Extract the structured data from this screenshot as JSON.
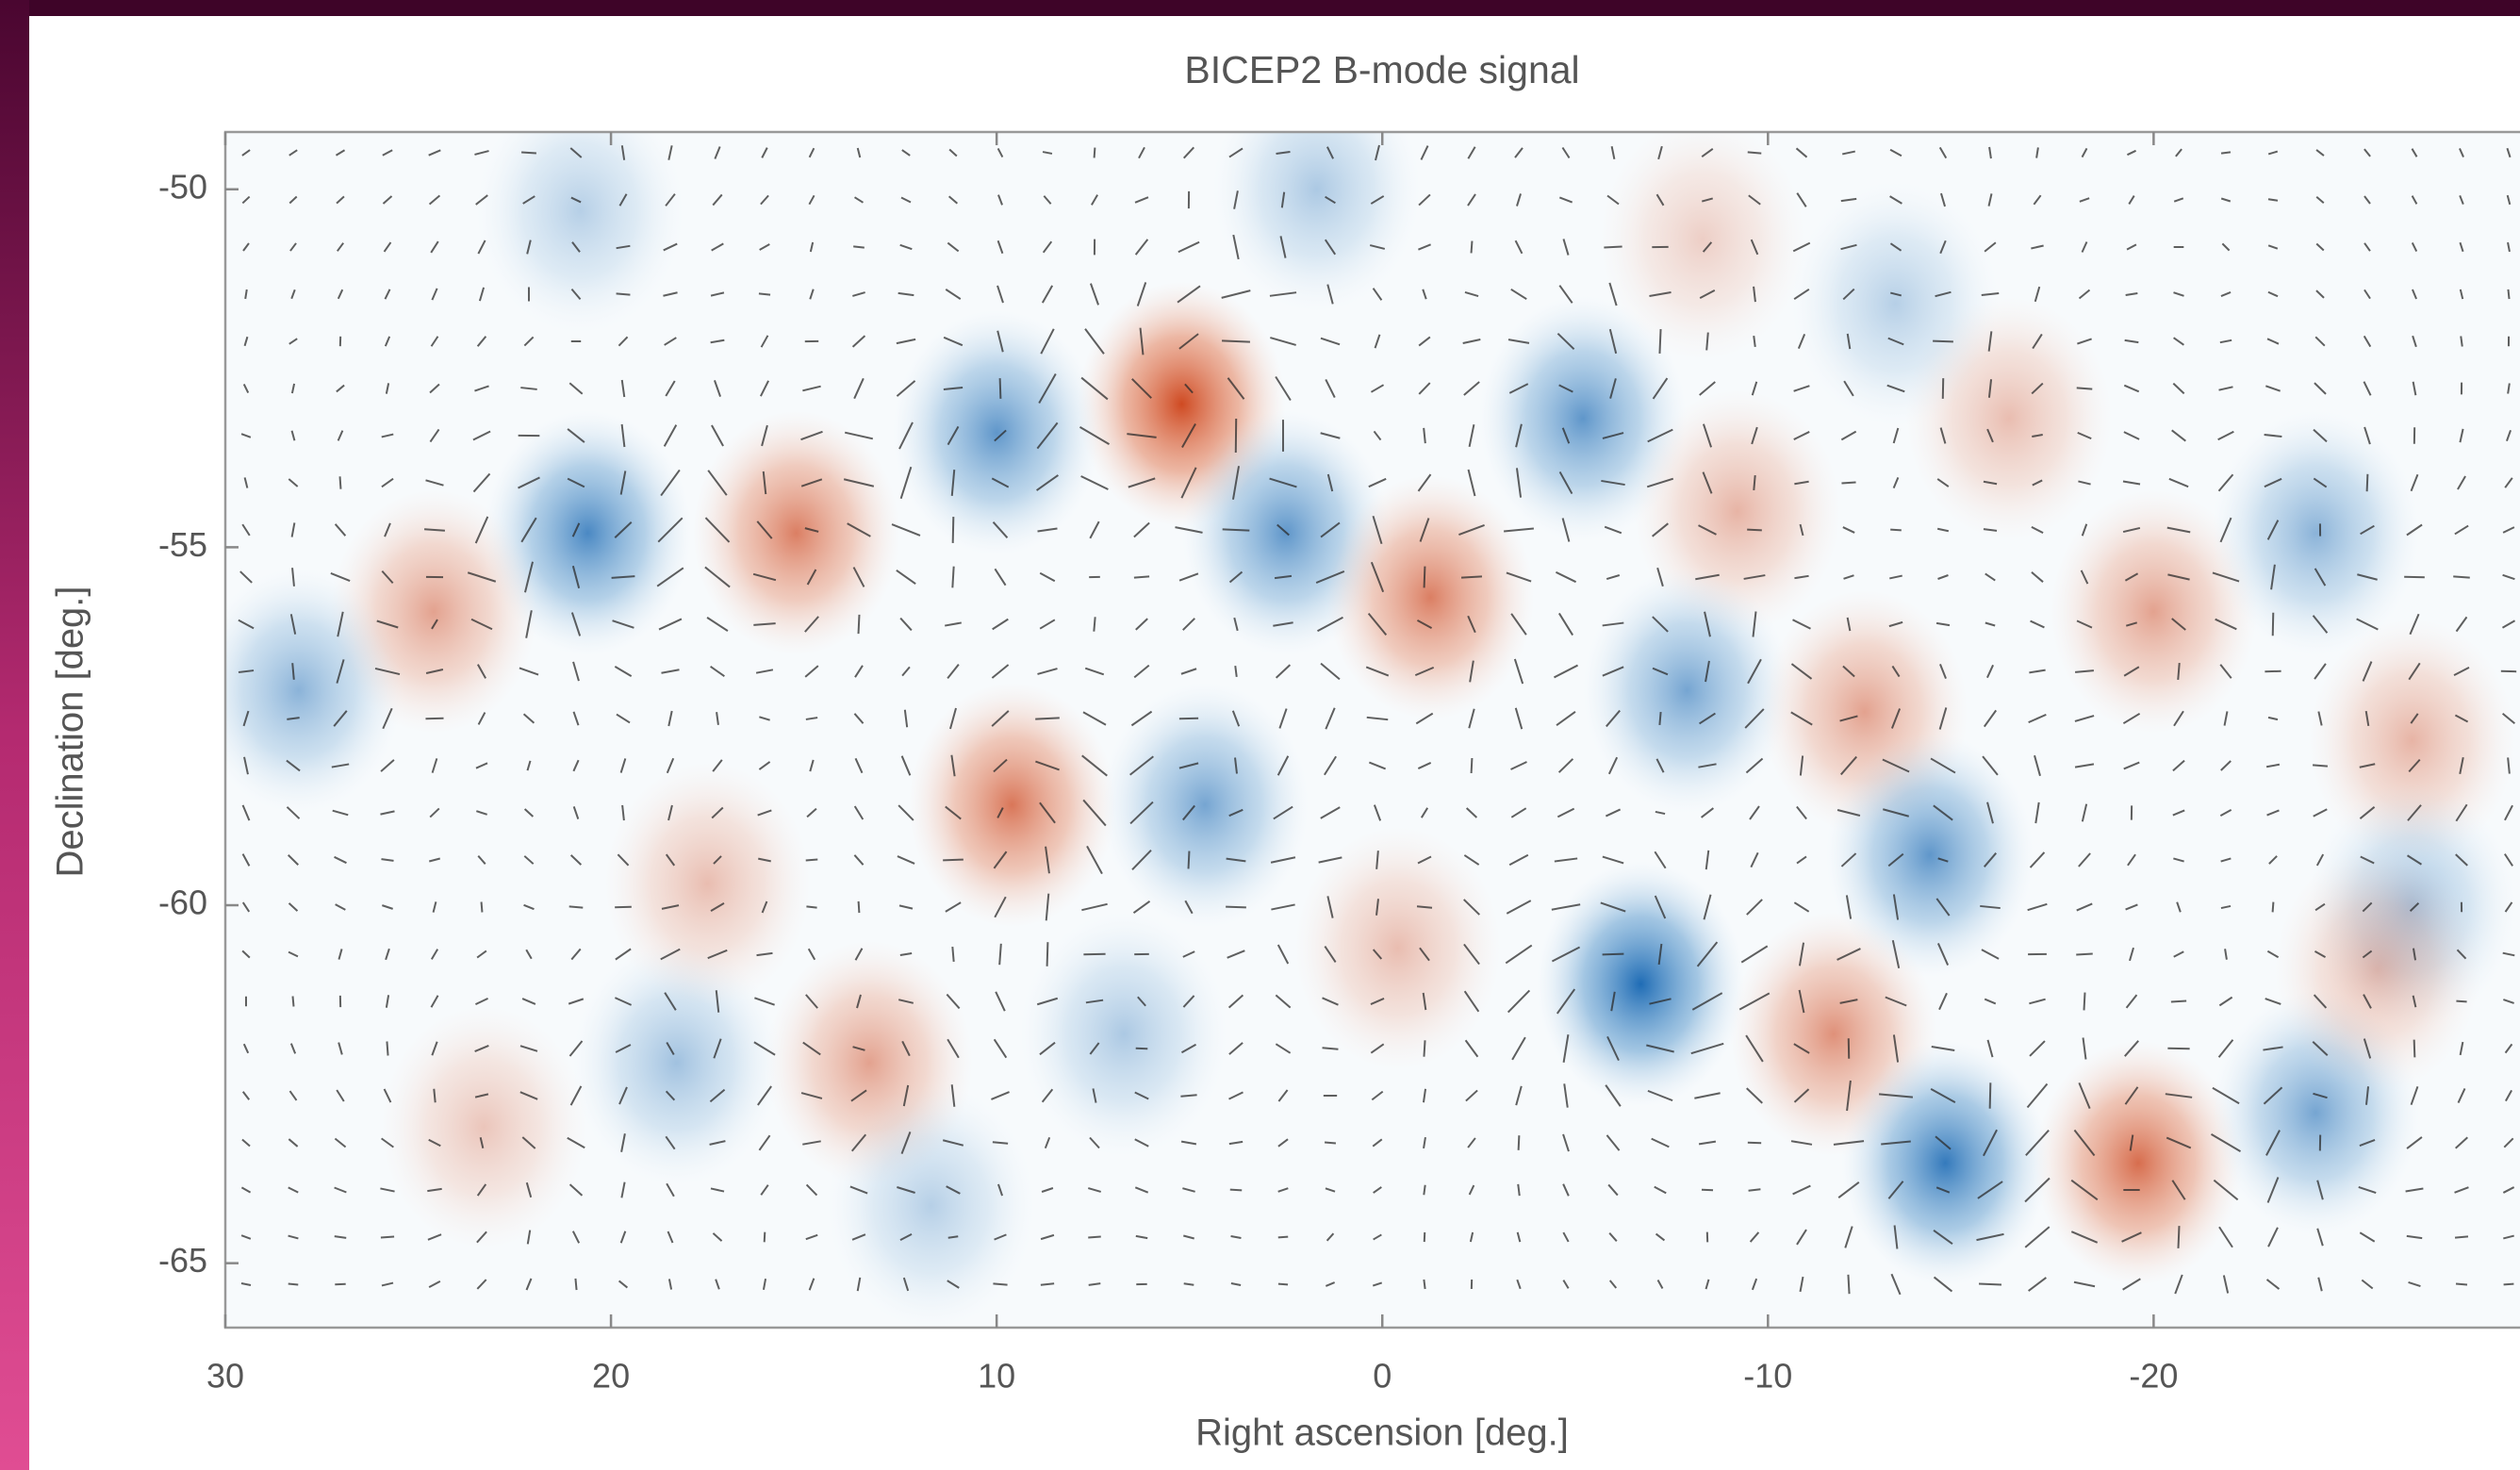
{
  "chart_data": {
    "type": "heatmap",
    "title": "BICEP2 B-mode signal",
    "x_label": "Right ascension [deg.]",
    "y_label": "Declination [deg.]",
    "xlim": [
      30,
      -29.5
    ],
    "ylim": [
      -65.9,
      -49.2
    ],
    "xticks": [
      30,
      20,
      10,
      0,
      -10,
      -20
    ],
    "yticks": [
      -50,
      -55,
      -60,
      -65
    ],
    "colors": {
      "negative": "#1f6cb5",
      "positive": "#cf4a22"
    },
    "x": [
      5.2,
      20.6,
      15.2,
      24.6,
      28.1,
      10.0,
      2.5,
      -1.25,
      -5.2,
      -9.2,
      -7.9,
      9.6,
      4.6,
      -12.5,
      -14.2,
      -6.7,
      -11.7,
      -14.6,
      -19.6,
      -24.2,
      -20,
      -24.2,
      13.3,
      18.3,
      17.5,
      -0.4,
      6.7,
      -16.25,
      -26.7,
      -26.7,
      -25.8,
      -8.3,
      20.8,
      -13.3,
      1.7,
      23.3,
      11.7
    ],
    "y": [
      -53.0,
      -54.8,
      -54.8,
      -55.9,
      -57.0,
      -53.4,
      -54.8,
      -55.7,
      -53.2,
      -54.5,
      -57.0,
      -58.6,
      -58.6,
      -57.3,
      -59.3,
      -61.1,
      -61.8,
      -63.6,
      -63.6,
      -62.9,
      -55.9,
      -54.8,
      -62.2,
      -62.2,
      -59.7,
      -60.6,
      -61.8,
      -53.2,
      -57.7,
      -60.0,
      -60.9,
      -50.7,
      -50.3,
      -51.6,
      -50.0,
      -63.1,
      -64.2
    ],
    "values": [
      1.0,
      -0.8,
      0.7,
      0.5,
      -0.5,
      -0.7,
      -0.7,
      0.7,
      -0.7,
      0.4,
      -0.6,
      0.75,
      -0.6,
      0.5,
      -0.7,
      -1.0,
      0.6,
      -0.9,
      0.8,
      -0.6,
      0.5,
      -0.5,
      0.5,
      -0.4,
      0.35,
      0.35,
      -0.35,
      0.35,
      0.4,
      -0.4,
      0.35,
      0.25,
      -0.3,
      -0.3,
      -0.35,
      0.3,
      -0.3
    ]
  }
}
